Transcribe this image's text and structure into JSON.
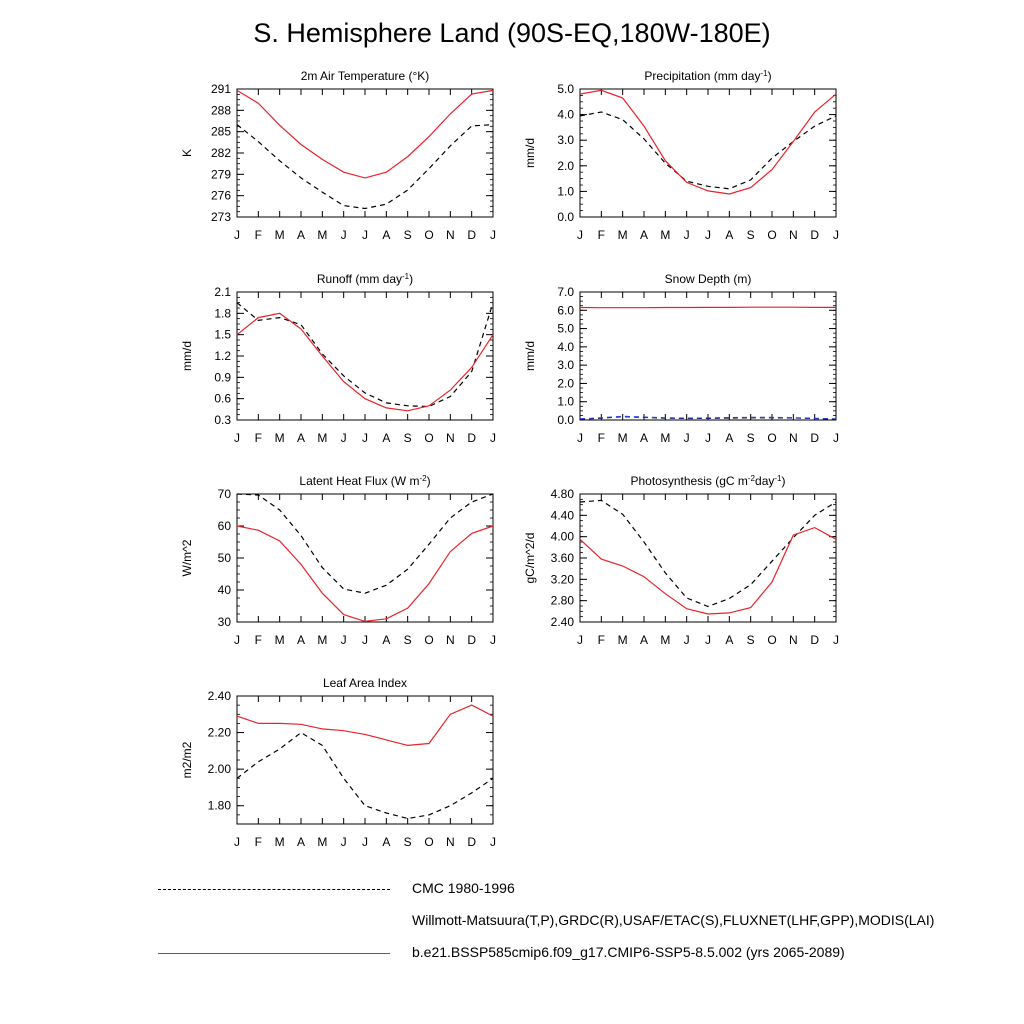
{
  "page": {
    "title": "S. Hemisphere Land (90S-EQ,180W-180E)"
  },
  "legend": [
    {
      "label": "CMC 1980-1996",
      "style": "dashed-black"
    },
    {
      "label": "Willmott-Matsuura(T,P),GRDC(R),USAF/ETAC(S),FLUXNET(LHF,GPP),MODIS(LAI)",
      "style": "dashed-red-blue"
    },
    {
      "label": "b.e21.BSSP585cmip6.f09_g17.CMIP6-SSP5-8.5.002 (yrs 2065-2089)",
      "style": "solid-red"
    }
  ],
  "colors": {
    "model": "#e8232a",
    "obs": "#000000",
    "obs_alt": "#2b3fd6"
  },
  "chart_data": [
    {
      "type": "line",
      "title": "2m Air Temperature (°K)",
      "ylabel": "K",
      "categories": [
        "J",
        "F",
        "M",
        "A",
        "M",
        "J",
        "J",
        "A",
        "S",
        "O",
        "N",
        "D",
        "J"
      ],
      "ylim": [
        273,
        291
      ],
      "yticks": [
        "273",
        "276",
        "279",
        "282",
        "285",
        "288",
        "291"
      ],
      "series": [
        {
          "role": "model",
          "values": [
            290.8,
            289.0,
            285.9,
            283.2,
            281.1,
            279.3,
            278.5,
            279.3,
            281.5,
            284.3,
            287.5,
            290.3,
            290.8
          ]
        },
        {
          "role": "obs",
          "values": [
            286.0,
            283.6,
            280.9,
            278.5,
            276.5,
            274.6,
            274.2,
            274.8,
            276.8,
            279.8,
            283.0,
            285.8,
            286.0
          ]
        }
      ]
    },
    {
      "type": "line",
      "title": "Precipitation (mm day-1)",
      "ylabel": "mm/d",
      "categories": [
        "J",
        "F",
        "M",
        "A",
        "M",
        "J",
        "J",
        "A",
        "S",
        "O",
        "N",
        "D",
        "J"
      ],
      "ylim": [
        0,
        5
      ],
      "yticks": [
        "0.0",
        "1.0",
        "2.0",
        "3.0",
        "4.0",
        "5.0"
      ],
      "series": [
        {
          "role": "model",
          "values": [
            4.8,
            4.95,
            4.65,
            3.55,
            2.2,
            1.35,
            1.02,
            0.9,
            1.15,
            1.85,
            2.95,
            4.1,
            4.8
          ]
        },
        {
          "role": "obs",
          "values": [
            3.95,
            4.1,
            3.8,
            3.05,
            2.1,
            1.4,
            1.2,
            1.1,
            1.45,
            2.3,
            2.95,
            3.55,
            3.95
          ]
        }
      ]
    },
    {
      "type": "line",
      "title": "Runoff (mm day-1)",
      "ylabel": "mm/d",
      "categories": [
        "J",
        "F",
        "M",
        "A",
        "M",
        "J",
        "J",
        "A",
        "S",
        "O",
        "N",
        "D",
        "J"
      ],
      "ylim": [
        0.3,
        2.1
      ],
      "yticks": [
        "0.3",
        "0.6",
        "0.9",
        "1.2",
        "1.5",
        "1.8",
        "2.1"
      ],
      "series": [
        {
          "role": "model",
          "values": [
            1.5,
            1.74,
            1.8,
            1.58,
            1.2,
            0.84,
            0.6,
            0.47,
            0.43,
            0.5,
            0.72,
            1.04,
            1.5
          ]
        },
        {
          "role": "obs",
          "values": [
            1.95,
            1.7,
            1.74,
            1.64,
            1.23,
            0.92,
            0.68,
            0.54,
            0.5,
            0.49,
            0.63,
            0.98,
            1.95
          ]
        }
      ]
    },
    {
      "type": "line",
      "title": "Snow Depth (m)",
      "ylabel": "mm/d",
      "categories": [
        "J",
        "F",
        "M",
        "A",
        "M",
        "J",
        "J",
        "A",
        "S",
        "O",
        "N",
        "D",
        "J"
      ],
      "ylim": [
        0,
        7
      ],
      "yticks": [
        "0.0",
        "1.0",
        "2.0",
        "3.0",
        "4.0",
        "5.0",
        "6.0",
        "7.0"
      ],
      "series": [
        {
          "role": "model",
          "values": [
            6.15,
            6.14,
            6.14,
            6.14,
            6.15,
            6.15,
            6.16,
            6.16,
            6.17,
            6.17,
            6.17,
            6.16,
            6.16
          ]
        },
        {
          "role": "obs",
          "values": [
            0.05,
            0.1,
            0.18,
            0.14,
            0.1,
            0.08,
            0.09,
            0.11,
            0.12,
            0.12,
            0.11,
            0.08,
            0.05
          ]
        },
        {
          "role": "obs_alt",
          "values": [
            0.06,
            0.12,
            0.2,
            0.16,
            0.12,
            0.1,
            0.11,
            0.13,
            0.14,
            0.14,
            0.12,
            0.09,
            0.06
          ]
        }
      ]
    },
    {
      "type": "line",
      "title": "Latent Heat Flux (W m-2)",
      "ylabel": "W/m^2",
      "categories": [
        "J",
        "F",
        "M",
        "A",
        "M",
        "J",
        "J",
        "A",
        "S",
        "O",
        "N",
        "D",
        "J"
      ],
      "ylim": [
        30,
        70
      ],
      "yticks": [
        "30",
        "40",
        "50",
        "60",
        "70"
      ],
      "series": [
        {
          "role": "model",
          "values": [
            60.0,
            58.7,
            55.3,
            48.0,
            39.0,
            32.3,
            30.2,
            31.0,
            34.3,
            42.0,
            52.0,
            57.7,
            60.0
          ]
        },
        {
          "role": "obs",
          "values": [
            70.0,
            69.7,
            65.0,
            57.0,
            47.0,
            40.3,
            39.0,
            41.5,
            46.5,
            54.3,
            62.5,
            67.5,
            70.0
          ]
        }
      ]
    },
    {
      "type": "line",
      "title": "Photosynthesis (gC m-2day-1)",
      "ylabel": "gC/m^2/d",
      "categories": [
        "J",
        "F",
        "M",
        "A",
        "M",
        "J",
        "J",
        "A",
        "S",
        "O",
        "N",
        "D",
        "J"
      ],
      "ylim": [
        2.4,
        4.8
      ],
      "yticks": [
        "2.40",
        "2.80",
        "3.20",
        "3.60",
        "4.00",
        "4.40",
        "4.80"
      ],
      "series": [
        {
          "role": "model",
          "values": [
            3.95,
            3.58,
            3.45,
            3.25,
            2.93,
            2.65,
            2.55,
            2.57,
            2.67,
            3.15,
            4.03,
            4.17,
            3.95
          ]
        },
        {
          "role": "obs",
          "values": [
            4.65,
            4.68,
            4.42,
            3.9,
            3.32,
            2.85,
            2.69,
            2.84,
            3.1,
            3.54,
            3.98,
            4.4,
            4.65
          ]
        }
      ]
    },
    {
      "type": "line",
      "title": "Leaf Area Index",
      "ylabel": "m2/m2",
      "categories": [
        "J",
        "F",
        "M",
        "A",
        "M",
        "J",
        "J",
        "A",
        "S",
        "O",
        "N",
        "D",
        "J"
      ],
      "ylim": [
        1.7,
        2.4
      ],
      "yticks": [
        "1.80",
        "2.00",
        "2.20",
        "2.40"
      ],
      "series": [
        {
          "role": "model",
          "values": [
            2.29,
            2.25,
            2.25,
            2.245,
            2.22,
            2.21,
            2.19,
            2.16,
            2.13,
            2.14,
            2.3,
            2.35,
            2.29
          ]
        },
        {
          "role": "obs",
          "values": [
            1.95,
            2.04,
            2.11,
            2.2,
            2.13,
            1.95,
            1.8,
            1.76,
            1.73,
            1.75,
            1.8,
            1.87,
            1.95
          ]
        }
      ]
    }
  ]
}
